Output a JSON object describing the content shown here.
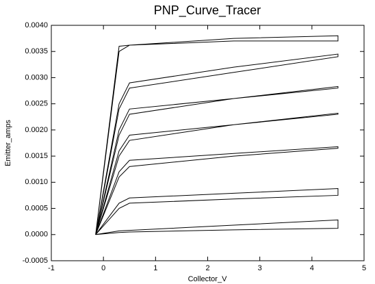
{
  "chart_data": {
    "type": "line",
    "title": "PNP_Curve_Tracer",
    "x_label": "Collector_V",
    "y_label": "Emitter_amps",
    "x": [
      -0.15,
      0.3,
      0.5,
      2.5,
      4.5,
      4.5,
      2.5,
      0.5,
      0.3,
      -0.15
    ],
    "series": [
      {
        "color": "#000000",
        "values": [
          0,
          4e-05,
          5e-05,
          9e-05,
          0.00012,
          0.00028,
          0.00018,
          8e-05,
          7e-05,
          0
        ]
      },
      {
        "color": "#000000",
        "values": [
          0,
          0.0005,
          0.0006,
          0.00068,
          0.00075,
          0.00088,
          0.00079,
          0.0007,
          0.0006,
          0
        ]
      },
      {
        "color": "#000000",
        "values": [
          0,
          0.0011,
          0.0013,
          0.0015,
          0.00165,
          0.00168,
          0.00155,
          0.00142,
          0.0012,
          0
        ]
      },
      {
        "color": "#000000",
        "values": [
          0,
          0.0015,
          0.0018,
          0.0021,
          0.0023,
          0.00232,
          0.0021,
          0.0019,
          0.0016,
          0
        ]
      },
      {
        "color": "#000000",
        "values": [
          0,
          0.0019,
          0.0023,
          0.0026,
          0.0028,
          0.00283,
          0.0026,
          0.0024,
          0.002,
          0
        ]
      },
      {
        "color": "#000000",
        "values": [
          0,
          0.0024,
          0.0028,
          0.0031,
          0.0034,
          0.00345,
          0.0032,
          0.0029,
          0.0025,
          0
        ]
      },
      {
        "color": "#000000",
        "values": [
          0,
          0.0036,
          0.00362,
          0.0037,
          0.0037,
          0.0038,
          0.00375,
          0.00362,
          0.0035,
          0
        ]
      }
    ],
    "xlim": [
      -1,
      5
    ],
    "xticks": [
      -1,
      0,
      1,
      2,
      3,
      4,
      5
    ],
    "ylim": [
      -0.0005,
      0.004
    ],
    "yticks": [
      {
        "value": -0.0005,
        "label": "-0.0005"
      },
      {
        "value": 0,
        "label": "0.0000"
      },
      {
        "value": 0.0005,
        "label": "0.0005"
      },
      {
        "value": 0.001,
        "label": "0.0010"
      },
      {
        "value": 0.0015,
        "label": "0.0015"
      },
      {
        "value": 0.002,
        "label": "0.0020"
      },
      {
        "value": 0.0025,
        "label": "0.0025"
      },
      {
        "value": 0.003,
        "label": "0.0030"
      },
      {
        "value": 0.0035,
        "label": "0.0035"
      },
      {
        "value": 0.004,
        "label": "0.0040"
      }
    ],
    "grid": false
  }
}
